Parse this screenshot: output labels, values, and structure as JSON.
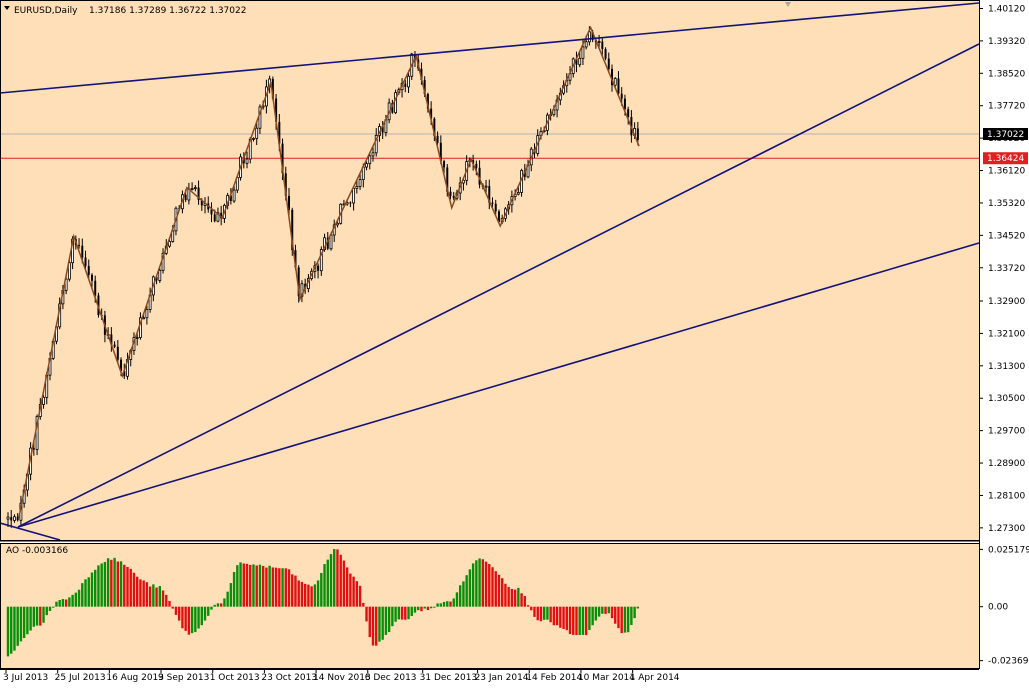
{
  "header": {
    "symbol": "EURUSD,Daily",
    "ohlc": "1.37186 1.37289 1.36722 1.37022",
    "indicator": "AO -0.003166"
  },
  "colors": {
    "background": "#ffdfb8",
    "bull_bar": "#078f07",
    "bear_bar": "#e01010",
    "candles": "#000000",
    "zigzag": "#8a4a20",
    "trendline": "#12127a",
    "horizontal_level": "#e02020",
    "bid_line": "#b0b0b0"
  },
  "chart_data": [
    {
      "type": "candlestick",
      "title": "EURUSD,Daily",
      "x": [
        "3 Jul 2013",
        "25 Jul 2013",
        "16 Aug 2013",
        "9 Sep 2013",
        "1 Oct 2013",
        "23 Oct 2013",
        "14 Nov 2013",
        "6 Dec 2013",
        "31 Dec 2013",
        "23 Jan 2014",
        "14 Feb 2014",
        "10 Mar 2014",
        "1 Apr 2014"
      ],
      "y_ticks": [
        "1.40120",
        "1.39320",
        "1.38520",
        "1.37720",
        "1.36920",
        "1.36120",
        "1.35320",
        "1.34520",
        "1.33720",
        "1.32900",
        "1.32100",
        "1.31300",
        "1.30500",
        "1.29700",
        "1.28900",
        "1.28100",
        "1.27300"
      ],
      "ylim": [
        1.2705,
        1.4028
      ],
      "current_price": "1.37022",
      "level_price": "1.36424",
      "zigzag": [
        {
          "date": "9 Jul 2013",
          "value": 1.2755
        },
        {
          "date": "1 Aug 2013",
          "value": 1.345
        },
        {
          "date": "22 Aug 2013",
          "value": 1.3105
        },
        {
          "date": "19 Sep 2013",
          "value": 1.357
        },
        {
          "date": "4 Oct 2013",
          "value": 1.3495
        },
        {
          "date": "25 Oct 2013",
          "value": 1.383
        },
        {
          "date": "7 Nov 2013",
          "value": 1.3295
        },
        {
          "date": "27 Dec 2013",
          "value": 1.3895
        },
        {
          "date": "13 Jan 2014",
          "value": 1.352
        },
        {
          "date": "21 Jan 2014",
          "value": 1.364
        },
        {
          "date": "3 Feb 2014",
          "value": 1.3475
        },
        {
          "date": "13 Mar 2014",
          "value": 1.3965
        },
        {
          "date": "3 Apr 2014",
          "value": 1.3672
        }
      ]
    },
    {
      "type": "bar",
      "title": "AO -0.003166",
      "y_ticks": [
        "0.025179",
        "0.00",
        "-0.023698"
      ],
      "ylim": [
        -0.0265,
        0.0271
      ]
    }
  ]
}
